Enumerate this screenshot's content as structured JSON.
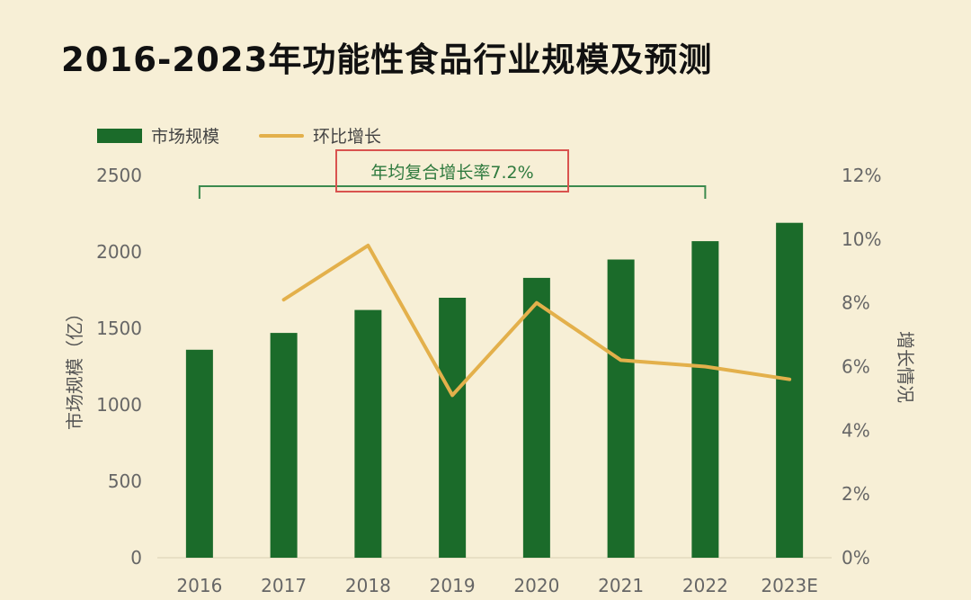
{
  "chart_data": {
    "type": "bar",
    "title": "2016-2023年功能性食品行业规模及预测",
    "categories": [
      "2016",
      "2017",
      "2018",
      "2019",
      "2020",
      "2021",
      "2022",
      "2023E"
    ],
    "series": [
      {
        "name": "市场规模",
        "type": "bar",
        "axis": "left",
        "values": [
          1360,
          1470,
          1620,
          1700,
          1830,
          1950,
          2070,
          2190
        ]
      },
      {
        "name": "环比增长",
        "type": "line",
        "axis": "right",
        "values": [
          null,
          8.1,
          9.8,
          5.1,
          8.0,
          6.2,
          6.0,
          5.6
        ]
      }
    ],
    "ylabel": "市场规模（亿）",
    "y2label": "增长情况",
    "ylim": [
      0,
      2500
    ],
    "yticks": [
      "0",
      "500",
      "1000",
      "1500",
      "2000",
      "2500"
    ],
    "y2lim": [
      0,
      12
    ],
    "y2ticks": [
      "0%",
      "2%",
      "4%",
      "6%",
      "8%",
      "10%",
      "12%"
    ],
    "annotation": "年均复合增长率7.2%",
    "legend_position": "top-left",
    "grid": false
  },
  "colors": {
    "bar": "#1b6b2a",
    "line": "#e3b04b",
    "bracket": "#3c8a4e",
    "highlight_box": "#d9534f",
    "background": "#f7efd6"
  }
}
